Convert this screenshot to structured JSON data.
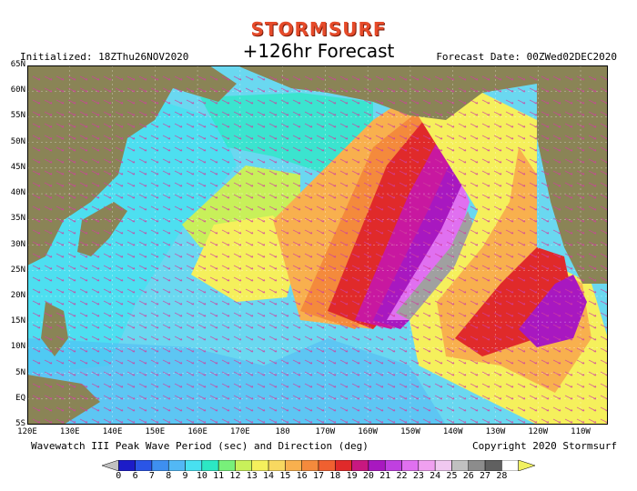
{
  "header": {
    "brand": "STORMSURF",
    "title": "+126hr Forecast",
    "initialized": "Initialized: 18ZThu26NOV2020",
    "forecast_date": "Forecast Date: 00ZWed02DEC2020"
  },
  "footer": {
    "product": "Wavewatch III Peak Wave Period (sec) and Direction (deg)",
    "copyright": "Copyright 2020 Stormsurf"
  },
  "axes": {
    "lat_labels": [
      "65N",
      "60N",
      "55N",
      "50N",
      "45N",
      "40N",
      "35N",
      "30N",
      "25N",
      "20N",
      "15N",
      "10N",
      "5N",
      "EQ",
      "5S"
    ],
    "lon_labels": [
      "120E",
      "130E",
      "140E",
      "150E",
      "160E",
      "170E",
      "180",
      "170W",
      "160W",
      "150W",
      "140W",
      "130W",
      "120W",
      "110W"
    ]
  },
  "legend": {
    "values": [
      "0",
      "6",
      "7",
      "8",
      "9",
      "10",
      "11",
      "12",
      "13",
      "14",
      "15",
      "16",
      "17",
      "18",
      "19",
      "20",
      "21",
      "22",
      "23",
      "24",
      "25",
      "26",
      "27",
      "28"
    ],
    "colors": [
      "#1c1cc8",
      "#2a55e6",
      "#3e8ff0",
      "#52b8f5",
      "#48e0f0",
      "#2ce8c4",
      "#78f07a",
      "#c8f05a",
      "#f5f05c",
      "#f8d860",
      "#f8b04e",
      "#f48a3c",
      "#f06030",
      "#e02a2a",
      "#c81880",
      "#a818c0",
      "#c040e0",
      "#e070f0",
      "#f0a0f0",
      "#f0c8f0",
      "#c0c0c0",
      "#8c8c8c",
      "#606060",
      "#ffffff",
      "#f0f060"
    ]
  },
  "map": {
    "land_color": "#8a8456",
    "ocean_base_color": "#6ad8f0",
    "grid": true,
    "arrows": true
  }
}
